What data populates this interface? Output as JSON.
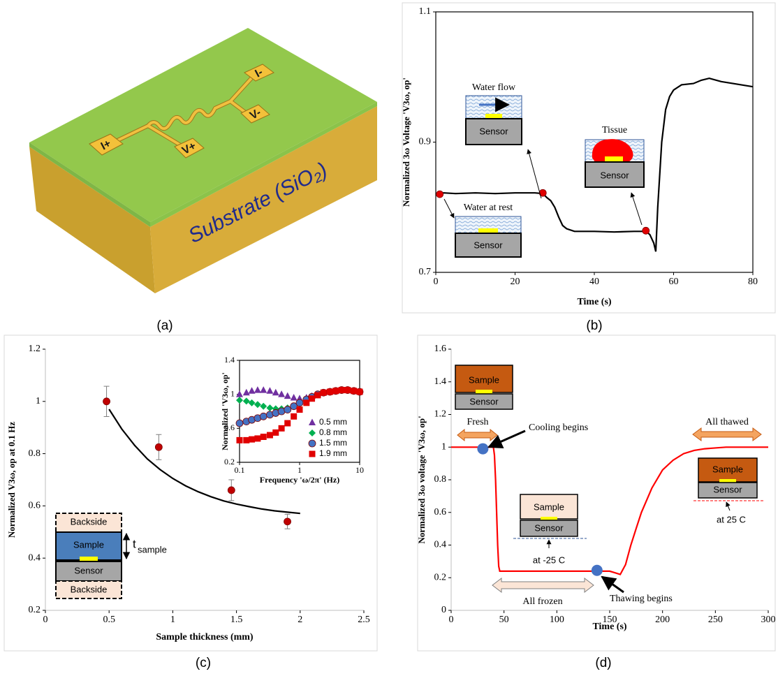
{
  "illustration": {
    "substrate_label": "Substrate (SiO₂)",
    "pads": [
      "I+",
      "V+",
      "V-",
      "I-"
    ]
  },
  "captions": [
    "(a)",
    "(b)",
    "(c)",
    "(d)"
  ],
  "chart_data": [
    {
      "type": "line",
      "xlabel": "Time (s)",
      "ylabel": "Normalized 3ω Voltage 'V3ω, op'",
      "xlim": [
        0,
        80
      ],
      "xticks": [
        0,
        20,
        40,
        60,
        80
      ],
      "ylim": [
        0.7,
        1.1
      ],
      "yticks": [
        0.7,
        0.9,
        1.1
      ],
      "frame": true,
      "series": [
        {
          "color": "#000000",
          "style": "line",
          "x": [
            0,
            2,
            5,
            10,
            15,
            20,
            25,
            27,
            28,
            29,
            30,
            31,
            32,
            33,
            35,
            40,
            45,
            50,
            53,
            54,
            55,
            55.5,
            56,
            57,
            58,
            59,
            60,
            62,
            65,
            67,
            69,
            72,
            75,
            80
          ],
          "values": [
            0.821,
            0.822,
            0.821,
            0.822,
            0.821,
            0.822,
            0.822,
            0.821,
            0.815,
            0.81,
            0.8,
            0.785,
            0.772,
            0.767,
            0.763,
            0.763,
            0.762,
            0.763,
            0.763,
            0.758,
            0.745,
            0.732,
            0.8,
            0.9,
            0.95,
            0.97,
            0.98,
            0.988,
            0.99,
            0.995,
            0.998,
            0.993,
            0.99,
            0.985
          ]
        },
        {
          "color": "#e00000",
          "style": "markers",
          "marker": "circle",
          "x": [
            1,
            27,
            53
          ],
          "values": [
            0.82,
            0.822,
            0.764
          ]
        }
      ],
      "annotations": [
        "Water flow",
        "Sensor",
        "Water at rest",
        "Sensor",
        "Tissue",
        "Sensor"
      ]
    },
    {
      "type": "scatter",
      "xlabel": "Sample thickness (mm)",
      "ylabel": "Normalized V3ω, op at 0.1 Hz",
      "xlim": [
        0,
        2.5
      ],
      "xticks": [
        0,
        0.5,
        1,
        1.5,
        2,
        2.5
      ],
      "ylim": [
        0.2,
        1.2
      ],
      "yticks": [
        0.2,
        0.4,
        0.6,
        0.8,
        1,
        1.2
      ],
      "frame": false,
      "series": [
        {
          "color": "#000000",
          "style": "line",
          "x": [
            0.5,
            0.6,
            0.7,
            0.8,
            0.9,
            1.0,
            1.1,
            1.2,
            1.3,
            1.4,
            1.5,
            1.6,
            1.7,
            1.8,
            1.9,
            2.0
          ],
          "values": [
            0.97,
            0.894,
            0.832,
            0.78,
            0.739,
            0.705,
            0.677,
            0.654,
            0.635,
            0.619,
            0.607,
            0.597,
            0.588,
            0.581,
            0.576,
            0.571
          ]
        },
        {
          "color": "#c00000",
          "style": "markers",
          "marker": "circle",
          "x": [
            0.48,
            0.89,
            1.46,
            1.9
          ],
          "values": [
            1.0,
            0.825,
            0.66,
            0.54
          ],
          "errors": [
            0.058,
            0.048,
            0.04,
            0.028
          ]
        }
      ],
      "annotations": [
        "Backside",
        "Sample",
        "Sensor",
        "Backside",
        "t",
        "sample"
      ]
    },
    {
      "type": "scatter",
      "xlabel": "Frequency 'ω/2π' (Hz)",
      "ylabel": "Normalized 'V3ω, op'",
      "xscale": "log",
      "xlim": [
        0.1,
        10
      ],
      "xticks": [
        0.1,
        1,
        10
      ],
      "ylim": [
        0.2,
        1.4
      ],
      "yticks": [
        0.2,
        0.6,
        1,
        1.4
      ],
      "frame": true,
      "legend": "lower right",
      "series": [
        {
          "name": "0.5 mm",
          "color": "#7030a0",
          "style": "markers",
          "marker": "triangle",
          "x": [
            0.1,
            0.13,
            0.16,
            0.2,
            0.25,
            0.32,
            0.4,
            0.5,
            0.63,
            0.8,
            1,
            1.3,
            1.6,
            2,
            2.5,
            3.2,
            4,
            5,
            6.3,
            8,
            10
          ],
          "values": [
            1.0,
            1.02,
            1.04,
            1.05,
            1.05,
            1.04,
            1.02,
            1.0,
            0.98,
            0.96,
            0.95,
            0.96,
            0.98,
            1.0,
            1.02,
            1.03,
            1.04,
            1.05,
            1.05,
            1.04,
            1.03
          ]
        },
        {
          "name": "0.8 mm",
          "color": "#00b050",
          "style": "markers",
          "marker": "diamond",
          "x": [
            0.1,
            0.13,
            0.16,
            0.2,
            0.25,
            0.32,
            0.4,
            0.5,
            0.63,
            0.8,
            1,
            1.3,
            1.6,
            2,
            2.5,
            3.2,
            4,
            5,
            6.3,
            8,
            10
          ],
          "values": [
            0.93,
            0.92,
            0.9,
            0.88,
            0.86,
            0.84,
            0.83,
            0.83,
            0.84,
            0.86,
            0.9,
            0.94,
            0.97,
            1.0,
            1.02,
            1.03,
            1.04,
            1.05,
            1.05,
            1.04,
            1.03
          ]
        },
        {
          "name": "1.5 mm",
          "color": "#4472c4",
          "style": "markers",
          "marker": "circle",
          "x": [
            0.1,
            0.13,
            0.16,
            0.2,
            0.25,
            0.32,
            0.4,
            0.5,
            0.63,
            0.8,
            1,
            1.3,
            1.6,
            2,
            2.5,
            3.2,
            4,
            5,
            6.3,
            8,
            10
          ],
          "values": [
            0.66,
            0.68,
            0.7,
            0.72,
            0.74,
            0.76,
            0.78,
            0.8,
            0.82,
            0.86,
            0.9,
            0.94,
            0.97,
            1.0,
            1.02,
            1.03,
            1.04,
            1.05,
            1.05,
            1.04,
            1.03
          ]
        },
        {
          "name": "1.9 mm",
          "color": "#e00000",
          "style": "markers",
          "marker": "square",
          "x": [
            0.1,
            0.13,
            0.16,
            0.2,
            0.25,
            0.32,
            0.4,
            0.5,
            0.63,
            0.8,
            1,
            1.3,
            1.6,
            2,
            2.5,
            3.2,
            4,
            5,
            6.3,
            8,
            10
          ],
          "values": [
            0.46,
            0.46,
            0.47,
            0.48,
            0.5,
            0.52,
            0.55,
            0.6,
            0.66,
            0.74,
            0.82,
            0.9,
            0.95,
            0.99,
            1.02,
            1.03,
            1.04,
            1.05,
            1.05,
            1.04,
            1.03
          ]
        }
      ]
    },
    {
      "type": "line",
      "xlabel": "Time (s)",
      "ylabel": "Normalized 3ω voltage 'V3ω, op'",
      "xlim": [
        0,
        300
      ],
      "xticks": [
        0,
        50,
        100,
        150,
        200,
        250,
        300
      ],
      "ylim": [
        0,
        1.6
      ],
      "yticks": [
        0,
        0.2,
        0.4,
        0.6,
        0.8,
        1,
        1.2,
        1.4,
        1.6
      ],
      "frame": false,
      "series": [
        {
          "color": "#ff0000",
          "style": "line",
          "x": [
            0,
            10,
            20,
            30,
            40,
            41,
            42,
            43,
            44,
            45,
            46,
            50,
            100,
            150,
            155,
            160,
            165,
            170,
            175,
            180,
            190,
            200,
            210,
            220,
            230,
            240,
            260,
            280,
            300
          ],
          "values": [
            1,
            1,
            1,
            1,
            1,
            0.95,
            0.8,
            0.6,
            0.4,
            0.27,
            0.24,
            0.24,
            0.24,
            0.24,
            0.23,
            0.22,
            0.28,
            0.4,
            0.5,
            0.6,
            0.75,
            0.86,
            0.92,
            0.96,
            0.98,
            0.99,
            1,
            1,
            1
          ]
        },
        {
          "color": "#4472c4",
          "style": "markers",
          "marker": "bigcircle",
          "x": [
            30,
            138
          ],
          "values": [
            0.99,
            0.245
          ]
        }
      ],
      "annotations": [
        "Fresh",
        "Cooling begins",
        "All thawed",
        "All frozen",
        "Thawing begins",
        "Sample",
        "Sensor",
        "Sample",
        "Sensor",
        "at -25 C",
        "Sample",
        "Sensor",
        "at 25 C"
      ]
    }
  ]
}
